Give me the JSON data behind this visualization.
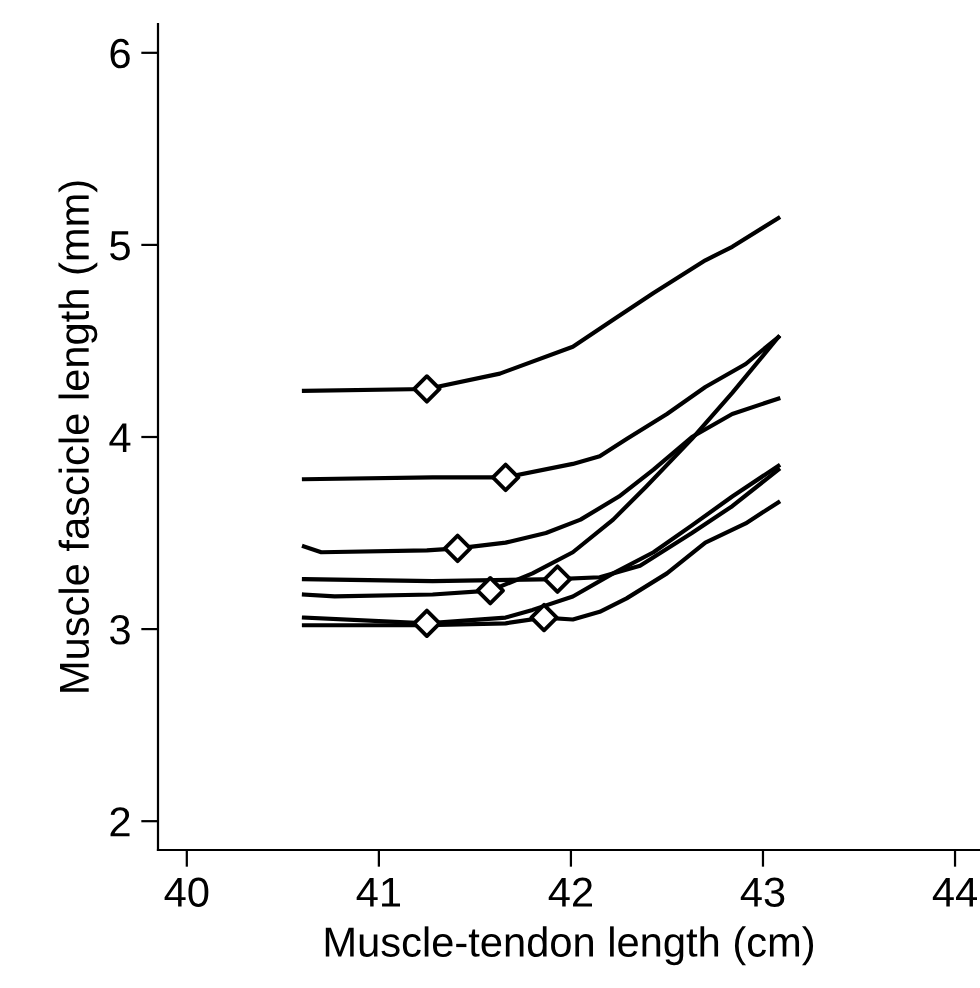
{
  "chart_data": {
    "type": "line",
    "xlabel": "Muscle-tendon length (cm)",
    "ylabel": "Muscle fascicle length (mm)",
    "xlim": [
      39.85,
      44.13
    ],
    "ylim": [
      1.85,
      6.15
    ],
    "xticks": [
      40,
      41,
      42,
      43,
      44
    ],
    "yticks": [
      2,
      3,
      4,
      5,
      6
    ],
    "grid": false,
    "legend": false,
    "series": [
      {
        "color": "#000000",
        "x": [
          40.61,
          41.25,
          41.63,
          42.01,
          42.22,
          42.43,
          42.7,
          42.84,
          43.08
        ],
        "values": [
          4.24,
          4.25,
          4.33,
          4.47,
          4.61,
          4.75,
          4.92,
          4.99,
          5.14
        ]
      },
      {
        "color": "#000000",
        "x": [
          40.61,
          41.28,
          41.66,
          42.01,
          42.15,
          42.29,
          42.5,
          42.7,
          42.91,
          43.08
        ],
        "values": [
          3.78,
          3.79,
          3.79,
          3.86,
          3.9,
          3.99,
          4.12,
          4.26,
          4.38,
          4.52
        ]
      },
      {
        "color": "#000000",
        "x": [
          40.61,
          40.7,
          41.25,
          41.41,
          41.66,
          41.87,
          42.05,
          42.25,
          42.43,
          42.63,
          42.84,
          43.08
        ],
        "values": [
          3.43,
          3.4,
          3.41,
          3.42,
          3.45,
          3.5,
          3.57,
          3.69,
          3.83,
          4.0,
          4.12,
          4.2
        ]
      },
      {
        "color": "#000000",
        "x": [
          40.61,
          40.77,
          41.28,
          41.58,
          41.8,
          42.01,
          42.22,
          42.39,
          42.63,
          42.84,
          43.08
        ],
        "values": [
          3.18,
          3.17,
          3.18,
          3.2,
          3.29,
          3.4,
          3.57,
          3.74,
          3.99,
          4.23,
          4.52
        ]
      },
      {
        "color": "#000000",
        "x": [
          40.61,
          41.28,
          41.93,
          42.15,
          42.36,
          42.63,
          42.84,
          43.08
        ],
        "values": [
          3.26,
          3.25,
          3.26,
          3.27,
          3.33,
          3.5,
          3.64,
          3.83
        ]
      },
      {
        "color": "#000000",
        "x": [
          40.61,
          41.25,
          41.66,
          41.8,
          42.01,
          42.22,
          42.43,
          42.63,
          42.84,
          43.08
        ],
        "values": [
          3.06,
          3.03,
          3.06,
          3.1,
          3.17,
          3.29,
          3.4,
          3.54,
          3.69,
          3.85
        ]
      },
      {
        "color": "#000000",
        "x": [
          40.61,
          41.25,
          41.66,
          41.86,
          42.01,
          42.15,
          42.29,
          42.5,
          42.7,
          42.91,
          43.08
        ],
        "values": [
          3.02,
          3.02,
          3.03,
          3.06,
          3.05,
          3.09,
          3.16,
          3.29,
          3.45,
          3.55,
          3.66
        ]
      },
      {
        "type": "scatter",
        "marker": "diamond",
        "color": "#000000",
        "x": [
          41.25,
          41.66,
          41.41,
          41.58,
          41.93,
          41.25,
          41.86
        ],
        "values": [
          4.25,
          3.79,
          3.42,
          3.2,
          3.26,
          3.03,
          3.06
        ]
      }
    ]
  }
}
